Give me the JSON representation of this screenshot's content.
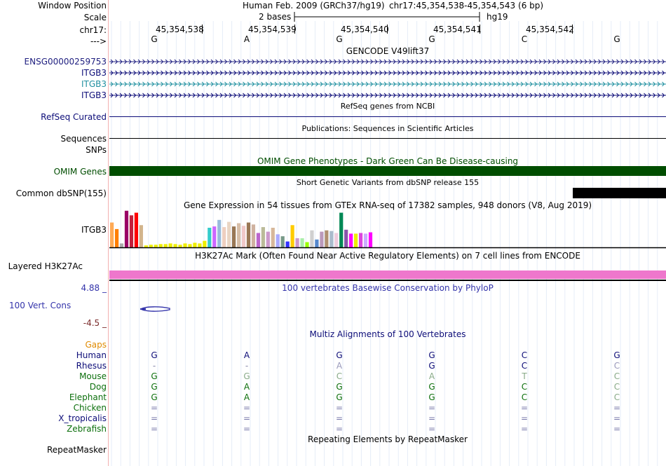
{
  "header": {
    "window_position_label": "Window Position",
    "scale_label": "Scale",
    "chrom_label": "chr17:",
    "strand_label": "--->",
    "assembly_text": "Human Feb. 2009 (GRCh37/hg19)",
    "position_text": "chr17:45,354,538-45,354,543 (6 bp)",
    "scale_text": "2 bases",
    "db_text": "hg19",
    "ruler_ticks": [
      "45,354,538",
      "45,354,539",
      "45,354,540",
      "45,354,541",
      "45,354,542"
    ],
    "bases": [
      "G",
      "A",
      "G",
      "G",
      "C",
      "G"
    ]
  },
  "tracks": {
    "gencode": {
      "title": "GENCODE V49lift37",
      "rows": [
        {
          "label": "ENSG00000259753",
          "color": "#202080"
        },
        {
          "label": "ITGB3",
          "color": "#0c0c78"
        },
        {
          "label": "ITGB3",
          "color": "#2090a0"
        },
        {
          "label": "ITGB3",
          "color": "#0c0c78"
        }
      ]
    },
    "refseq": {
      "title": "RefSeq genes from NCBI",
      "label": "RefSeq Curated",
      "color": "#0c0c78"
    },
    "publications": {
      "title": "Publications: Sequences in Scientific Articles",
      "label": "Sequences"
    },
    "snps_label": "SNPs",
    "omim": {
      "title": "OMIM Gene Phenotypes - Dark Green Can Be Disease-causing",
      "label": "OMIM Genes",
      "color": "#004d00"
    },
    "dbsnp": {
      "title": "Short Genetic Variants from dbSNP release 155",
      "label": "Common dbSNP(155)"
    },
    "gtex": {
      "title": "Gene Expression in 54 tissues from GTEx RNA-seq of 17382 samples, 948 donors (V8, Aug 2019)",
      "label": "ITGB3",
      "bar_values": [
        0.38,
        0.28,
        0.06,
        0.56,
        0.49,
        0.53,
        0.34,
        0.03,
        0.04,
        0.04,
        0.05,
        0.05,
        0.06,
        0.05,
        0.04,
        0.06,
        0.05,
        0.07,
        0.06,
        0.1,
        0.3,
        0.32,
        0.42,
        0.31,
        0.39,
        0.32,
        0.37,
        0.33,
        0.38,
        0.35,
        0.22,
        0.31,
        0.24,
        0.3,
        0.2,
        0.17,
        0.09,
        0.34,
        0.14,
        0.14,
        0.08,
        0.26,
        0.12,
        0.24,
        0.26,
        0.25,
        0.22,
        0.53,
        0.27,
        0.21,
        0.21,
        0.22,
        0.21,
        0.23
      ],
      "bar_colors": [
        "#ffaa55",
        "#ff7f00",
        "#aaaaaa",
        "#990066",
        "#c41e3a",
        "#ff0000",
        "#d2b48c",
        "#eeee00",
        "#eeee00",
        "#eeee00",
        "#eeee00",
        "#eeee00",
        "#eeee00",
        "#eeee00",
        "#eeee00",
        "#eeee00",
        "#eeee00",
        "#eeee00",
        "#eeee00",
        "#eeee00",
        "#33cccc",
        "#cc66ff",
        "#99bbdd",
        "#eecfc0",
        "#e9d5c3",
        "#997755",
        "#d7bea8",
        "#f0c8c8",
        "#997755",
        "#cfb2a0",
        "#bb66cc",
        "#bbbb99",
        "#cc99cc",
        "#d7b89a",
        "#aaaaff",
        "#779988",
        "#3333ff",
        "#ffcc00",
        "#cc99cc",
        "#aaeeaa",
        "#99ff00",
        "#d0d0d0",
        "#5588cc",
        "#bb99bb",
        "#b09070",
        "#aabbcc",
        "#eeccdd",
        "#008855",
        "#8855aa",
        "#ff00ff",
        "#eeee00",
        "#dd44dd",
        "#ccaaff",
        "#ff00ff"
      ]
    },
    "h3k27ac": {
      "title": "H3K27Ac Mark (Often Found Near Active Regulatory Elements) on 7 cell lines from ENCODE",
      "label": "Layered H3K27Ac",
      "color": "#ee77cc"
    },
    "phylop": {
      "title": "100 vertebrates Basewise Conservation by PhyloP",
      "label": "100 Vert. Cons",
      "max_label": "4.88 _",
      "min_label": "-4.5 _",
      "color": "#3333aa"
    },
    "multiz": {
      "title": "Multiz Alignments of 100 Vertebrates",
      "gaps_label": "Gaps",
      "species": [
        {
          "name": "Human",
          "color": "#0c0c78",
          "bases": [
            "G",
            "A",
            "G",
            "G",
            "C",
            "G"
          ],
          "base_colors": [
            "#0c0c78",
            "#0c0c78",
            "#0c0c78",
            "#0c0c78",
            "#0c0c78",
            "#0c0c78"
          ]
        },
        {
          "name": "Rhesus",
          "color": "#0c0c78",
          "bases": [
            "-",
            "-",
            "A",
            "G",
            "C",
            "C"
          ],
          "base_colors": [
            "#8888aa",
            "#8888aa",
            "#9999bb",
            "#0c0c78",
            "#0c0c78",
            "#9999bb"
          ]
        },
        {
          "name": "Mouse",
          "color": "#0c6f0c",
          "bases": [
            "G",
            "G",
            "C",
            "A",
            "T",
            "C"
          ],
          "base_colors": [
            "#0c6f0c",
            "#88aa88",
            "#88aa88",
            "#88aa88",
            "#88aa88",
            "#88aa88"
          ]
        },
        {
          "name": "Dog",
          "color": "#0c6f0c",
          "bases": [
            "G",
            "A",
            "G",
            "G",
            "C",
            "C"
          ],
          "base_colors": [
            "#0c6f0c",
            "#0c6f0c",
            "#0c6f0c",
            "#0c6f0c",
            "#0c6f0c",
            "#88aa88"
          ]
        },
        {
          "name": "Elephant",
          "color": "#0c6f0c",
          "bases": [
            "G",
            "A",
            "G",
            "G",
            "C",
            "C"
          ],
          "base_colors": [
            "#0c6f0c",
            "#0c6f0c",
            "#0c6f0c",
            "#0c6f0c",
            "#0c6f0c",
            "#88aa88"
          ]
        },
        {
          "name": "Chicken",
          "color": "#0c6f0c",
          "bases": [
            "=",
            "=",
            "=",
            "=",
            "=",
            "="
          ],
          "base_colors": [
            "#7777aa",
            "#7777aa",
            "#7777aa",
            "#7777aa",
            "#7777aa",
            "#7777aa"
          ]
        },
        {
          "name": "X_tropicalis",
          "color": "#0c0c78",
          "bases": [
            "=",
            "=",
            "=",
            "=",
            "=",
            "="
          ],
          "base_colors": [
            "#7777aa",
            "#7777aa",
            "#7777aa",
            "#7777aa",
            "#7777aa",
            "#7777aa"
          ]
        },
        {
          "name": "Zebrafish",
          "color": "#0c6f0c",
          "bases": [
            "=",
            "=",
            "=",
            "=",
            "=",
            "="
          ],
          "base_colors": [
            "#7777aa",
            "#7777aa",
            "#7777aa",
            "#7777aa",
            "#7777aa",
            "#7777aa"
          ]
        }
      ]
    },
    "repeatmasker": {
      "title": "Repeating Elements by RepeatMasker",
      "label": "RepeatMasker"
    }
  }
}
